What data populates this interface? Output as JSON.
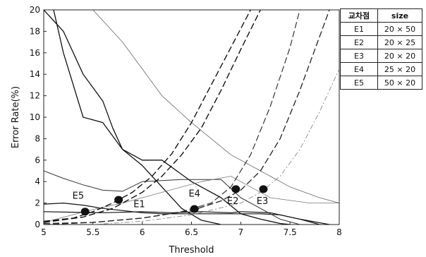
{
  "chart_data": {
    "type": "line",
    "title": "",
    "xlabel": "Threshold",
    "ylabel": "Error Rate(%)",
    "xlim": [
      5,
      8
    ],
    "ylim": [
      0,
      20
    ],
    "xticks": [
      5,
      5.5,
      6,
      6.5,
      7,
      7.5,
      8
    ],
    "xtick_labels": [
      "5",
      "5.5",
      "6",
      "6.5",
      "7",
      "7.5",
      "8"
    ],
    "yticks": [
      0,
      2,
      4,
      6,
      8,
      10,
      12,
      14,
      16,
      18,
      20
    ],
    "ytick_labels": [
      "0",
      "2",
      "4",
      "6",
      "8",
      "10",
      "12",
      "14",
      "16",
      "18",
      "20"
    ],
    "grid": false,
    "series": [
      {
        "style": "solid",
        "color": "#111111",
        "stroke_width": 1.3,
        "x": [
          5.0,
          5.2,
          5.4,
          5.6,
          5.7,
          5.8,
          6.0,
          6.2,
          6.4,
          6.6,
          6.8
        ],
        "y": [
          20.0,
          18.0,
          14.0,
          11.5,
          9.0,
          7.0,
          5.5,
          3.5,
          1.5,
          0.4,
          0.0
        ]
      },
      {
        "style": "solid",
        "color": "#111111",
        "stroke_width": 1.3,
        "x": [
          5.1,
          5.2,
          5.4,
          5.6,
          5.8,
          6.0,
          6.2,
          6.5,
          6.8,
          7.0,
          7.2,
          7.4,
          7.5
        ],
        "y": [
          20.0,
          16.0,
          10.0,
          9.5,
          7.0,
          6.0,
          6.0,
          4.0,
          2.5,
          1.0,
          0.5,
          0.1,
          0.0
        ]
      },
      {
        "style": "solid",
        "color": "#111111",
        "stroke_width": 1.2,
        "x": [
          5.0,
          5.2,
          5.4,
          5.6,
          5.8,
          6.0,
          6.2,
          6.4,
          6.6,
          6.8,
          7.0,
          7.2,
          7.4,
          7.6,
          7.8
        ],
        "y": [
          1.9,
          2.0,
          1.8,
          1.5,
          1.3,
          1.1,
          1.0,
          1.0,
          1.0,
          1.0,
          1.0,
          1.0,
          0.9,
          0.5,
          0.0
        ]
      },
      {
        "style": "solid",
        "color": "#111111",
        "stroke_width": 1.2,
        "x": [
          5.0,
          5.6,
          6.0,
          6.3,
          6.6,
          6.9,
          7.0,
          7.3,
          7.6,
          7.9
        ],
        "y": [
          1.2,
          1.1,
          1.2,
          1.1,
          1.2,
          1.1,
          1.2,
          1.1,
          0.5,
          0.0
        ]
      },
      {
        "style": "solid",
        "color": "#333333",
        "stroke_width": 1.0,
        "x": [
          5.0,
          5.2,
          5.4,
          5.6,
          5.8,
          6.0,
          6.2,
          6.4,
          6.6,
          6.8,
          7.0,
          7.2,
          7.4,
          7.6
        ],
        "y": [
          5.0,
          4.3,
          3.7,
          3.2,
          3.1,
          4.0,
          4.1,
          4.2,
          4.2,
          4.2,
          2.5,
          1.5,
          0.5,
          0.0
        ]
      },
      {
        "style": "solid",
        "color": "#777777",
        "stroke_width": 0.8,
        "x": [
          5.0,
          5.5,
          5.8,
          6.0,
          6.4,
          6.6,
          6.9,
          7.1,
          7.3,
          7.7,
          8.0
        ],
        "y": [
          0.2,
          1.4,
          2.0,
          2.5,
          3.5,
          4.0,
          4.5,
          3.5,
          2.5,
          2.0,
          2.0
        ]
      },
      {
        "style": "solid",
        "color": "#666666",
        "stroke_width": 0.8,
        "x": [
          5.5,
          5.8,
          6.0,
          6.2,
          6.5,
          6.9,
          7.2,
          7.5,
          7.8,
          8.0
        ],
        "y": [
          20.0,
          17.0,
          14.5,
          12.0,
          9.5,
          6.5,
          5.0,
          3.5,
          2.5,
          2.0
        ]
      },
      {
        "style": "dashed",
        "color": "#111111",
        "stroke_width": 1.4,
        "x": [
          5.0,
          5.3,
          5.5,
          5.7,
          5.9,
          6.1,
          6.3,
          6.5,
          6.7,
          6.9,
          7.1
        ],
        "y": [
          0.3,
          0.6,
          1.2,
          2.0,
          3.0,
          4.5,
          6.6,
          9.5,
          13.0,
          16.5,
          20.0
        ]
      },
      {
        "style": "dashed",
        "color": "#111111",
        "stroke_width": 1.4,
        "x": [
          5.0,
          5.4,
          5.7,
          6.0,
          6.2,
          6.4,
          6.6,
          6.8,
          7.0,
          7.2
        ],
        "y": [
          0.2,
          0.7,
          1.5,
          3.0,
          4.5,
          6.5,
          9.0,
          12.5,
          16.3,
          20.0
        ]
      },
      {
        "style": "dashed",
        "color": "#333333",
        "stroke_width": 1.2,
        "x": [
          5.0,
          5.5,
          6.0,
          6.4,
          6.7,
          6.9,
          7.1,
          7.3,
          7.5,
          7.6
        ],
        "y": [
          0.1,
          0.2,
          0.6,
          1.2,
          2.0,
          3.5,
          6.5,
          11.0,
          16.5,
          20.0
        ]
      },
      {
        "style": "dashed",
        "color": "#222222",
        "stroke_width": 1.3,
        "x": [
          5.0,
          5.5,
          6.0,
          6.5,
          6.8,
          7.0,
          7.2,
          7.4,
          7.6,
          7.8,
          7.9
        ],
        "y": [
          0.0,
          0.2,
          0.6,
          1.3,
          2.2,
          3.2,
          5.0,
          8.0,
          12.5,
          17.5,
          20.0
        ]
      },
      {
        "style": "dashdot",
        "color": "#888888",
        "stroke_width": 0.9,
        "x": [
          5.5,
          6.0,
          6.5,
          7.0,
          7.2,
          7.4,
          7.6,
          7.8,
          8.0
        ],
        "y": [
          0.0,
          0.3,
          0.9,
          2.0,
          3.0,
          4.5,
          7.0,
          10.5,
          14.5
        ]
      }
    ],
    "markers": [
      {
        "label": "E5",
        "x": 5.42,
        "y": 1.2,
        "label_x": 5.35,
        "label_y": 2.4
      },
      {
        "label": "E1",
        "x": 5.76,
        "y": 2.3,
        "label_x": 5.97,
        "label_y": 1.6
      },
      {
        "label": "E4",
        "x": 6.53,
        "y": 1.45,
        "label_x": 6.53,
        "label_y": 2.6
      },
      {
        "label": "E2",
        "x": 6.95,
        "y": 3.3,
        "label_x": 6.92,
        "label_y": 1.9
      },
      {
        "label": "E3",
        "x": 7.23,
        "y": 3.3,
        "label_x": 7.22,
        "label_y": 1.9
      }
    ]
  },
  "size_table": {
    "header": [
      "교차점",
      "size"
    ],
    "rows": [
      [
        "E1",
        "20 × 50"
      ],
      [
        "E2",
        "20 × 25"
      ],
      [
        "E3",
        "20 × 20"
      ],
      [
        "E4",
        "25 × 20"
      ],
      [
        "E5",
        "50 × 20"
      ]
    ]
  }
}
